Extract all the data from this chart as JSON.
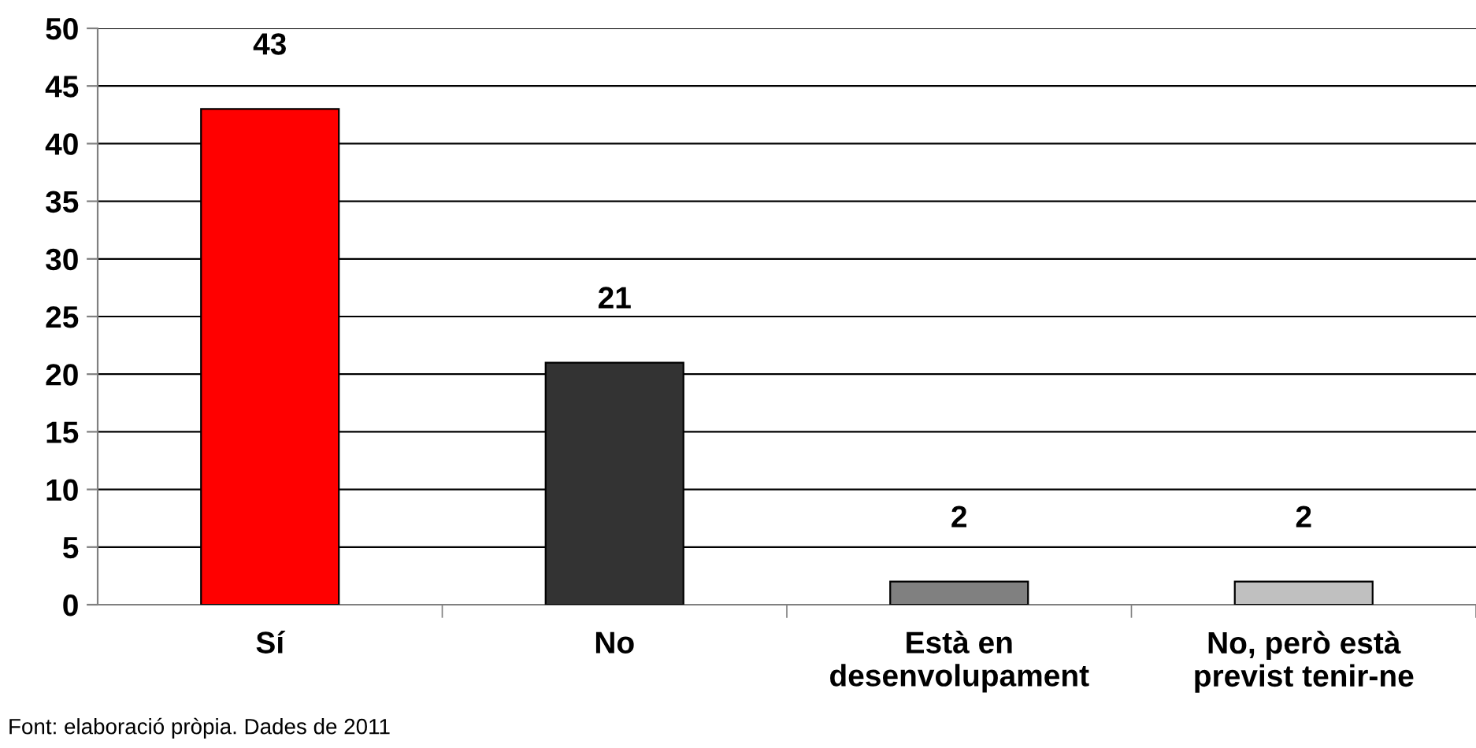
{
  "chart_data": {
    "type": "bar",
    "categories": [
      "Sí",
      "No",
      "Està en\ndesenvolupament",
      "No, però està\nprevist tenir-ne"
    ],
    "values": [
      43,
      21,
      2,
      2
    ],
    "colors": [
      "#ff0000",
      "#333333",
      "#808080",
      "#c0c0c0"
    ],
    "ylim": [
      0,
      50
    ],
    "yticks": [
      0,
      5,
      10,
      15,
      20,
      25,
      30,
      35,
      40,
      45,
      50
    ],
    "grid": "y",
    "data_labels": true,
    "annotations": [
      "Font: elaboració pròpia. Dades de 2011"
    ]
  }
}
